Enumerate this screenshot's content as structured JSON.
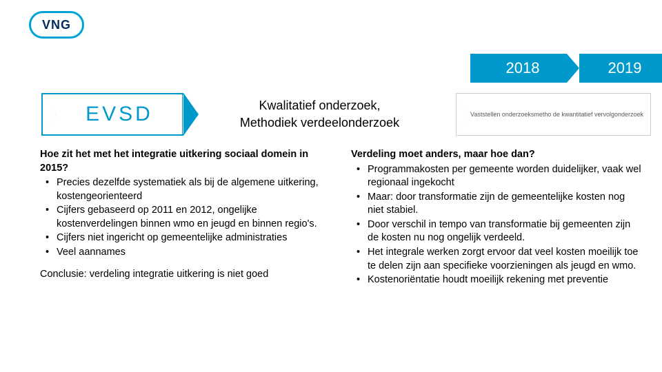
{
  "logo": {
    "text": "VNG",
    "border_color": "#00a3d6",
    "text_color": "#002b5c"
  },
  "years": [
    {
      "label": "2018",
      "bg": "#0099cc",
      "fg": "#ffffff"
    },
    {
      "label": "2019",
      "bg": "#0099cc",
      "fg": "#ffffff"
    }
  ],
  "evsd": {
    "label": "EVSD",
    "text_color": "#0099cc",
    "border_color": "#0099cc",
    "middle_line1": "Kwalitatief onderzoek,",
    "middle_line2": "Methodiek verdeelonderzoek"
  },
  "small_arrow": {
    "text": "Vaststellen onderzoeksmetho de kwantitatief vervolgonderzoek",
    "border_color": "#cccccc",
    "text_color": "#595959"
  },
  "left_column": {
    "heading": "Hoe zit het met het integratie uitkering sociaal domein in 2015?",
    "items": [
      "Precies dezelfde systematiek als bij de algemene uitkering,  kostengeorienteerd",
      "Cijfers gebaseerd op 2011 en 2012, ongelijke kostenverdelingen binnen wmo en jeugd en binnen regio's.",
      "Cijfers niet ingericht op gemeentelijke administraties",
      "Veel aannames"
    ],
    "conclusion": "Conclusie: verdeling integratie uitkering is niet goed"
  },
  "right_column": {
    "heading": "Verdeling moet anders, maar hoe dan?",
    "items": [
      "Programmakosten per gemeente worden duidelijker, vaak wel regionaal ingekocht",
      "Maar: door transformatie zijn de gemeentelijke kosten nog niet stabiel.",
      "Door verschil in tempo van transformatie bij gemeenten zijn de kosten nu nog ongelijk verdeeld.",
      "Het integrale werken zorgt ervoor dat veel kosten moeilijk toe te delen zijn aan specifieke voorzieningen als jeugd en wmo.",
      "Kostenoriëntatie houdt moeilijk rekening met preventie"
    ]
  },
  "styling": {
    "body_font": "Arial",
    "body_font_size_pt": 11,
    "heading_font_weight": "bold",
    "accent_color": "#0099cc",
    "background_color": "#ffffff",
    "text_color": "#000000",
    "bullet_color": "#000000"
  }
}
